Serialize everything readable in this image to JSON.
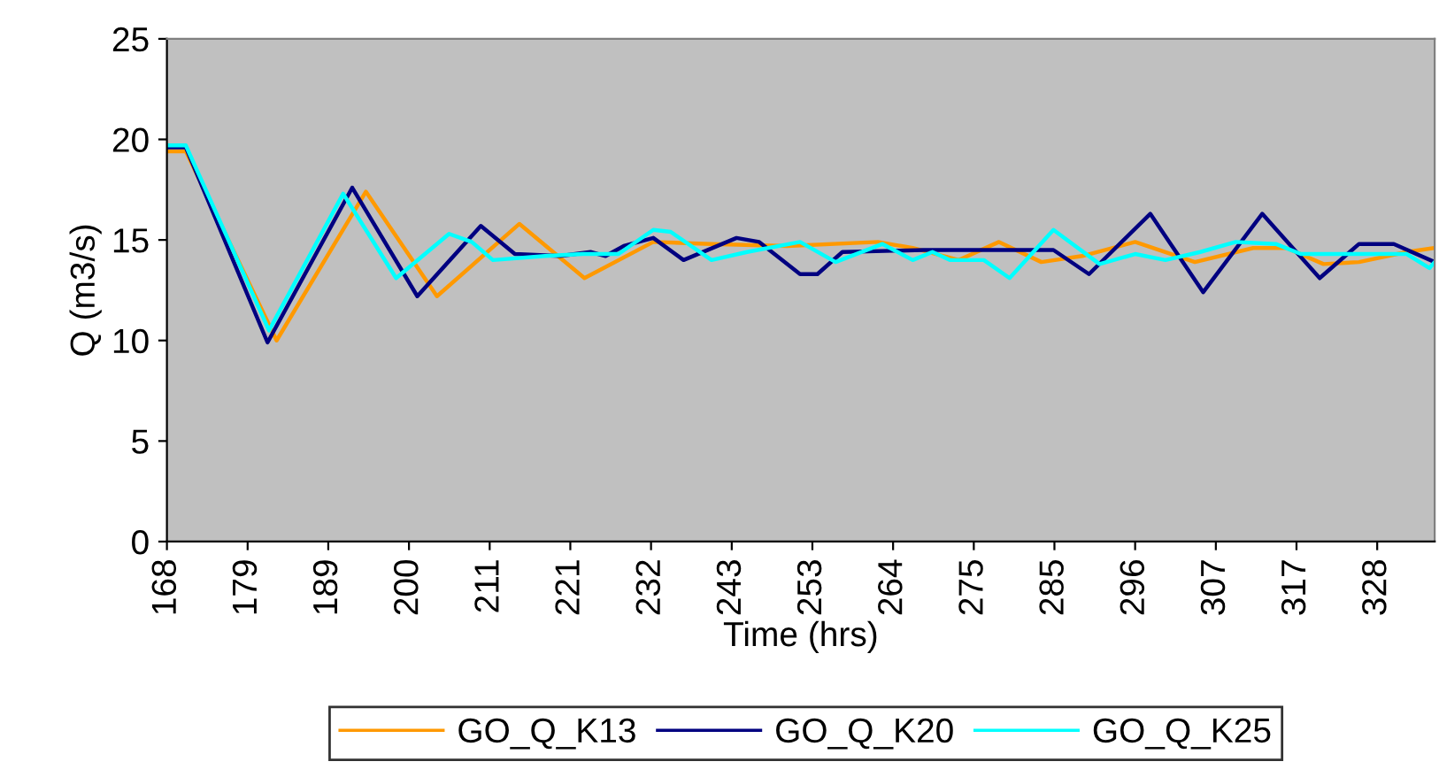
{
  "chart_data": {
    "type": "line",
    "xlabel": "Time (hrs)",
    "ylabel": "Q (m3/s)",
    "xlim": [
      168,
      335.6
    ],
    "xticks": [
      168,
      {
        "value": 178.67,
        "label": "179"
      },
      {
        "value": 189.33,
        "label": "189"
      },
      200,
      {
        "value": 210.67,
        "label": "211"
      },
      {
        "value": 221.33,
        "label": "221"
      },
      232,
      {
        "value": 242.67,
        "label": "243"
      },
      {
        "value": 253.33,
        "label": "253"
      },
      264,
      {
        "value": 274.67,
        "label": "275"
      },
      {
        "value": 285.33,
        "label": "285"
      },
      296,
      {
        "value": 306.67,
        "label": "307"
      },
      {
        "value": 317.33,
        "label": "317"
      },
      328
    ],
    "ylim": [
      0,
      25
    ],
    "yticks": [
      0,
      5,
      10,
      15,
      20,
      25
    ],
    "grid": false,
    "legend": "bottom",
    "line_style": "solid",
    "series": [
      {
        "name": "GO_Q_K13",
        "color": "#ff9900",
        "x": [
          168,
          170.5,
          182.5,
          194.3,
          203.7,
          214.6,
          223.2,
          232.3,
          240,
          250,
          262,
          266.6,
          272.7,
          278,
          283.6,
          289,
          296,
          303.9,
          311.6,
          316,
          320.9,
          325.6,
          331.9,
          335.6
        ],
        "values": [
          19.4,
          19.4,
          10.0,
          17.4,
          12.2,
          15.8,
          13.1,
          14.9,
          14.8,
          14.7,
          14.9,
          14.6,
          14.0,
          14.9,
          13.9,
          14.2,
          14.9,
          13.9,
          14.6,
          14.6,
          13.8,
          13.9,
          14.4,
          14.6
        ]
      },
      {
        "name": "GO_Q_K20",
        "color": "#000080",
        "x": [
          168,
          170.5,
          181.3,
          192.5,
          201.1,
          209.5,
          214,
          220,
          224,
          226,
          228.4,
          232.3,
          236.3,
          243.3,
          246.3,
          251.7,
          254,
          257.3,
          268,
          279,
          285.2,
          289.9,
          298,
          305,
          312.8,
          320.4,
          325.6,
          330.2,
          335.6
        ],
        "values": [
          19.6,
          19.6,
          9.9,
          17.6,
          12.2,
          15.7,
          14.3,
          14.2,
          14.4,
          14.2,
          14.7,
          15.1,
          14.0,
          15.1,
          14.9,
          13.3,
          13.3,
          14.4,
          14.5,
          14.5,
          14.5,
          13.3,
          16.3,
          12.4,
          16.3,
          13.1,
          14.8,
          14.8,
          13.9
        ]
      },
      {
        "name": "GO_Q_K25",
        "color": "#00ffff",
        "x": [
          168,
          170.5,
          181.5,
          191.3,
          198.3,
          205.3,
          208.3,
          211.1,
          218,
          223,
          227.7,
          232.3,
          234.6,
          240,
          244.7,
          251.7,
          256.4,
          262.6,
          266.6,
          269.2,
          271.5,
          276,
          279.4,
          285.2,
          291.3,
          296,
          300,
          304.6,
          309.3,
          314.6,
          317.9,
          324,
          331.9,
          334.9,
          335.6
        ],
        "values": [
          19.7,
          19.7,
          10.5,
          17.3,
          13.1,
          15.3,
          14.9,
          14.0,
          14.2,
          14.3,
          14.3,
          15.5,
          15.4,
          14.0,
          14.4,
          14.9,
          13.9,
          14.8,
          14.0,
          14.4,
          14.0,
          14.0,
          13.1,
          15.5,
          13.8,
          14.3,
          14.0,
          14.4,
          14.9,
          14.8,
          14.3,
          14.3,
          14.3,
          13.6,
          13.9
        ]
      }
    ]
  }
}
